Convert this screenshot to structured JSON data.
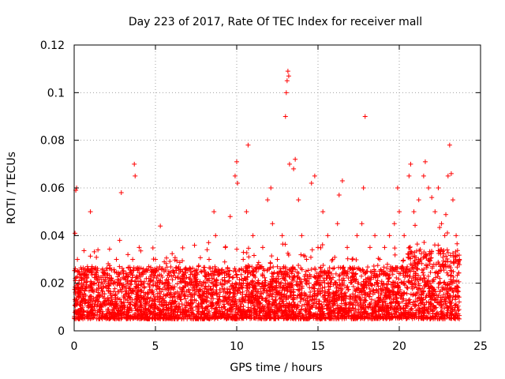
{
  "chart_data": {
    "type": "scatter",
    "title": "Day 223 of 2017, Rate Of TEC Index for receiver mall",
    "xlabel": "GPS time / hours",
    "ylabel": "ROTI / TECUs",
    "xlim": [
      0,
      25
    ],
    "ylim": [
      0,
      0.12
    ],
    "xticks": [
      0,
      5,
      10,
      15,
      20,
      25
    ],
    "xtick_labels": [
      "0",
      "5",
      "10",
      "15",
      "20",
      "25"
    ],
    "yticks": [
      0,
      0.02,
      0.04,
      0.06,
      0.08,
      0.1,
      0.12
    ],
    "ytick_labels": [
      "0",
      "0.02",
      "0.04",
      "0.06",
      "0.08",
      "0.1",
      "0.12"
    ],
    "grid": true,
    "marker": "plus",
    "color": "#ff0000",
    "series": [
      {
        "x": [
          0.05,
          0.1,
          0.15,
          0.2,
          0.3,
          0.4,
          0.5,
          0.7,
          0.9,
          1.0,
          1.2,
          1.5,
          1.8,
          2.0,
          2.3,
          2.6,
          2.8,
          2.9,
          3.0,
          3.3,
          3.6,
          3.7,
          3.75,
          4.0,
          4.3,
          4.6,
          5.0,
          5.3,
          5.6,
          5.9,
          6.2,
          6.5,
          6.8,
          7.1,
          7.4,
          7.7,
          8.0,
          8.3,
          8.6,
          8.7,
          9.0,
          9.3,
          9.6,
          9.9,
          10.0,
          10.05,
          10.4,
          10.6,
          10.7,
          11.0,
          11.3,
          11.6,
          11.9,
          12.1,
          12.2,
          12.5,
          12.8,
          13.0,
          13.05,
          13.1,
          13.15,
          13.2,
          13.25,
          13.5,
          13.6,
          13.8,
          14.0,
          14.3,
          14.6,
          14.8,
          15.0,
          15.3,
          15.6,
          15.9,
          16.2,
          16.3,
          16.5,
          16.8,
          17.1,
          17.4,
          17.7,
          17.8,
          17.9,
          18.2,
          18.5,
          18.8,
          19.1,
          19.4,
          19.7,
          19.9,
          20.0,
          20.3,
          20.6,
          20.7,
          20.9,
          21.2,
          21.5,
          21.6,
          21.8,
          22.0,
          22.2,
          22.4,
          22.6,
          22.8,
          23.0,
          23.1,
          23.2,
          23.3,
          23.5,
          23.7
        ],
        "y": [
          0.041,
          0.059,
          0.06,
          0.03,
          0.02,
          0.015,
          0.012,
          0.018,
          0.025,
          0.05,
          0.02,
          0.015,
          0.012,
          0.018,
          0.022,
          0.03,
          0.038,
          0.058,
          0.025,
          0.02,
          0.03,
          0.07,
          0.065,
          0.035,
          0.018,
          0.022,
          0.03,
          0.044,
          0.02,
          0.015,
          0.012,
          0.018,
          0.022,
          0.016,
          0.013,
          0.015,
          0.012,
          0.03,
          0.05,
          0.04,
          0.02,
          0.035,
          0.048,
          0.065,
          0.071,
          0.062,
          0.03,
          0.05,
          0.078,
          0.04,
          0.02,
          0.035,
          0.055,
          0.06,
          0.045,
          0.03,
          0.04,
          0.09,
          0.1,
          0.105,
          0.109,
          0.107,
          0.07,
          0.068,
          0.072,
          0.055,
          0.04,
          0.03,
          0.062,
          0.065,
          0.035,
          0.05,
          0.04,
          0.03,
          0.045,
          0.057,
          0.063,
          0.035,
          0.03,
          0.04,
          0.045,
          0.06,
          0.09,
          0.035,
          0.04,
          0.03,
          0.035,
          0.04,
          0.045,
          0.06,
          0.05,
          0.04,
          0.065,
          0.07,
          0.05,
          0.055,
          0.065,
          0.071,
          0.06,
          0.056,
          0.05,
          0.06,
          0.045,
          0.04,
          0.065,
          0.078,
          0.066,
          0.055,
          0.04,
          0.03
        ]
      }
    ]
  }
}
